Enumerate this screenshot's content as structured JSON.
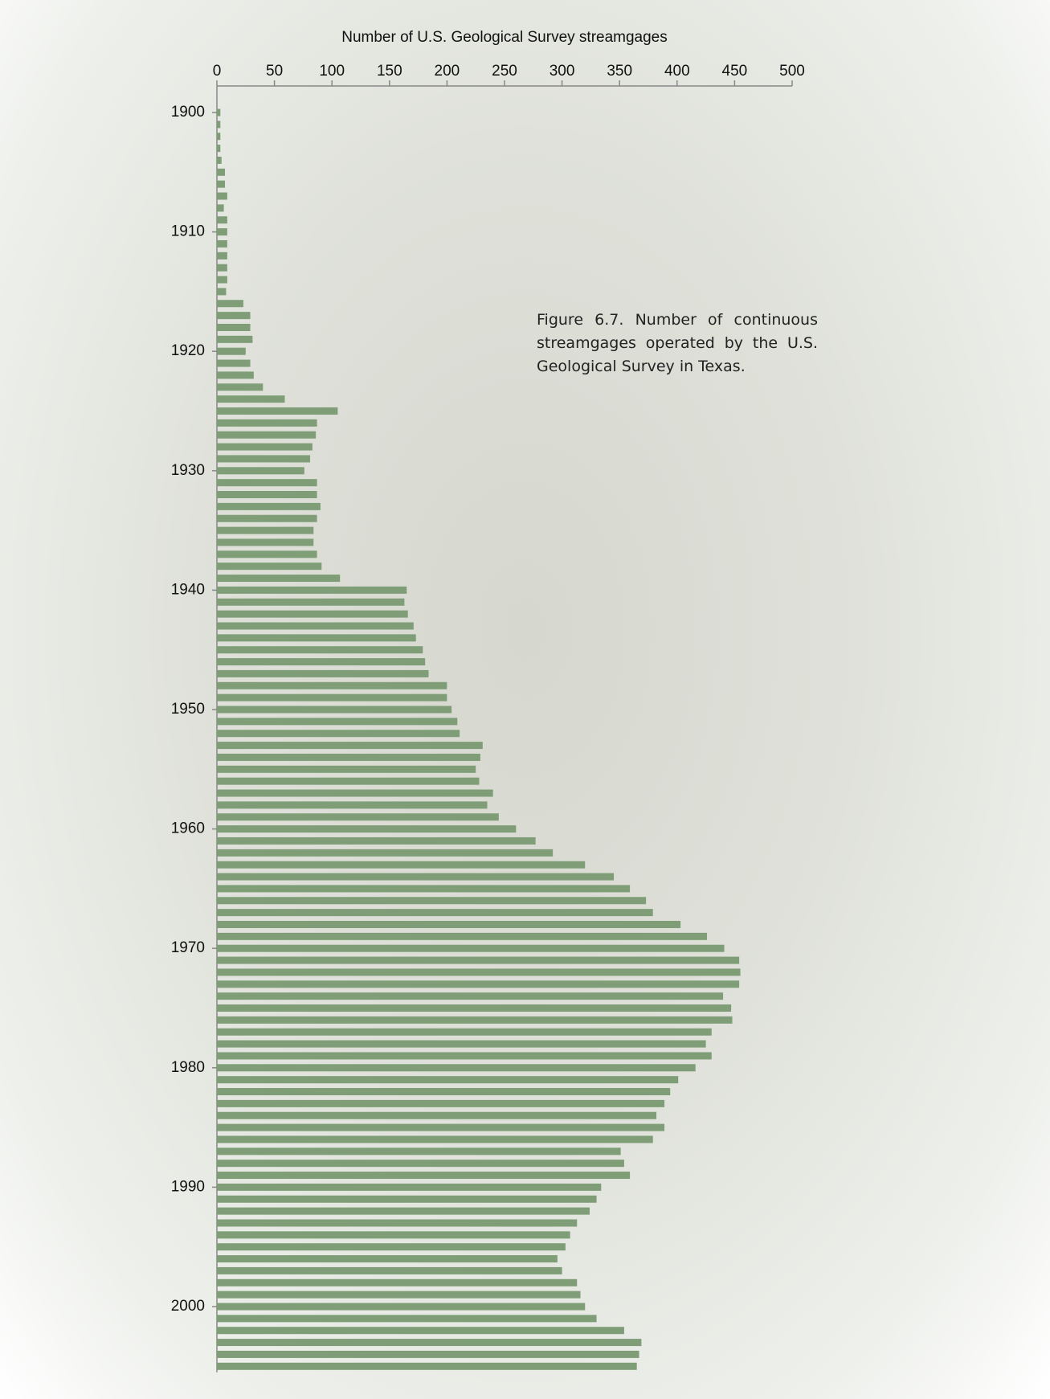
{
  "chart_data": {
    "type": "bar",
    "orientation": "horizontal",
    "xlabel": "Number of U.S. Geological Survey streamgages",
    "annotation": "Figure 6.7. Number of continuous streamgages operated by the U.S. Geological Survey in Texas.",
    "color": "#7f9e77",
    "xlim": [
      0,
      500
    ],
    "xticks": [
      0,
      50,
      100,
      150,
      200,
      250,
      300,
      350,
      400,
      450,
      500
    ],
    "categories": [
      "1900",
      null,
      null,
      null,
      null,
      null,
      null,
      null,
      null,
      null,
      "1910",
      null,
      null,
      null,
      null,
      null,
      null,
      null,
      null,
      null,
      "1920",
      null,
      null,
      null,
      null,
      null,
      null,
      null,
      null,
      null,
      "1930",
      null,
      null,
      null,
      null,
      null,
      null,
      null,
      null,
      null,
      "1940",
      null,
      null,
      null,
      null,
      null,
      null,
      null,
      null,
      null,
      "1950",
      null,
      null,
      null,
      null,
      null,
      null,
      null,
      null,
      null,
      "1960",
      null,
      null,
      null,
      null,
      null,
      null,
      null,
      null,
      null,
      "1970",
      null,
      null,
      null,
      null,
      null,
      null,
      null,
      null,
      null,
      "1980",
      null,
      null,
      null,
      null,
      null,
      null,
      null,
      null,
      null,
      "1990",
      null,
      null,
      null,
      null,
      null,
      null,
      null,
      null,
      null,
      "2000",
      null,
      null,
      null,
      null,
      null
    ],
    "values": [
      3,
      3,
      3,
      3,
      4,
      7,
      7,
      9,
      6,
      9,
      9,
      9,
      9,
      9,
      9,
      8,
      23,
      29,
      29,
      31,
      25,
      29,
      32,
      40,
      59,
      105,
      87,
      86,
      83,
      81,
      76,
      87,
      87,
      90,
      87,
      84,
      84,
      87,
      91,
      107,
      165,
      163,
      166,
      171,
      173,
      179,
      181,
      184,
      200,
      200,
      204,
      209,
      211,
      231,
      229,
      225,
      228,
      240,
      235,
      245,
      260,
      277,
      292,
      320,
      345,
      359,
      373,
      379,
      403,
      426,
      441,
      454,
      455,
      454,
      440,
      447,
      448,
      430,
      425,
      430,
      416,
      401,
      394,
      389,
      382,
      389,
      379,
      351,
      354,
      359,
      334,
      330,
      324,
      313,
      307,
      303,
      296,
      300,
      313,
      316,
      320,
      330,
      354,
      369,
      367,
      365
    ]
  }
}
